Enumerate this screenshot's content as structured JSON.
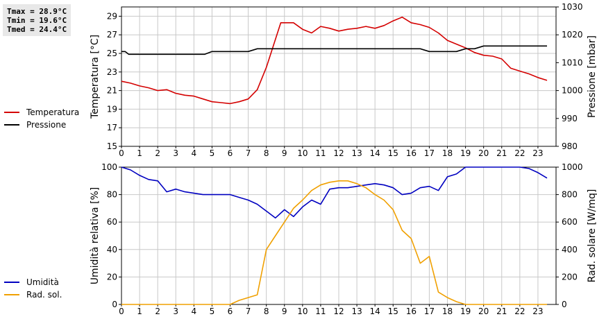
{
  "stats": {
    "tmax": "Tmax = 28.9°C",
    "tmin": "Tmin = 19.6°C",
    "tmed": "Tmed = 24.4°C"
  },
  "legend_top": [
    {
      "label": "Temperatura",
      "color": "#d40000"
    },
    {
      "label": "Pressione",
      "color": "#000000"
    }
  ],
  "legend_bottom": [
    {
      "label": "Umidità",
      "color": "#0000c0"
    },
    {
      "label": "Rad. sol.",
      "color": "#f0a000"
    }
  ],
  "chart_data": [
    {
      "type": "line",
      "ylabel": "Temperatura [°C]",
      "y2label": "Pressione [mbar]",
      "xlim": [
        0,
        24
      ],
      "ylim": [
        15,
        30
      ],
      "y2lim": [
        980,
        1030
      ],
      "x_ticks": [
        0,
        1,
        2,
        3,
        4,
        5,
        6,
        7,
        8,
        9,
        10,
        11,
        12,
        13,
        14,
        15,
        16,
        17,
        18,
        19,
        20,
        21,
        22,
        23
      ],
      "y_ticks": [
        15,
        17,
        19,
        21,
        23,
        25,
        27,
        29
      ],
      "y2_ticks": [
        980,
        990,
        1000,
        1010,
        1020,
        1030
      ],
      "grid": true,
      "series": [
        {
          "name": "Temperatura",
          "color": "#d40000",
          "axis": "left",
          "x": [
            0,
            0.5,
            1,
            1.5,
            2,
            2.5,
            3,
            3.5,
            4,
            4.5,
            5,
            5.5,
            6,
            6.5,
            7,
            7.5,
            8,
            8.5,
            8.8,
            9.5,
            10,
            10.5,
            11,
            11.5,
            12,
            12.5,
            13,
            13.5,
            14,
            14.5,
            15,
            15.5,
            16,
            16.5,
            17,
            17.5,
            18,
            18.5,
            19,
            19.5,
            20,
            20.5,
            21,
            21.5,
            22,
            22.5,
            23,
            23.5
          ],
          "values": [
            22,
            21.8,
            21.5,
            21.3,
            21.0,
            21.1,
            20.7,
            20.5,
            20.4,
            20.1,
            19.8,
            19.7,
            19.6,
            19.8,
            20.1,
            21.1,
            23.5,
            26.5,
            28.3,
            28.3,
            27.6,
            27.2,
            27.9,
            27.7,
            27.4,
            27.6,
            27.7,
            27.9,
            27.7,
            28.0,
            28.5,
            28.9,
            28.3,
            28.1,
            27.8,
            27.2,
            26.4,
            26.0,
            25.6,
            25.1,
            24.8,
            24.7,
            24.4,
            23.4,
            23.1,
            22.8,
            22.4,
            22.1
          ]
        },
        {
          "name": "Pressione",
          "color": "#000000",
          "axis": "right",
          "x": [
            0,
            0.2,
            0.4,
            4.6,
            5,
            7,
            7.5,
            16.5,
            17,
            18.5,
            19,
            19.5,
            20,
            23.5
          ],
          "values": [
            1014,
            1014,
            1013,
            1013,
            1014,
            1014,
            1015,
            1015,
            1014,
            1014,
            1015,
            1015,
            1016,
            1016
          ]
        }
      ]
    },
    {
      "type": "line",
      "ylabel": "Umidità relativa [%]",
      "y2label": "Rad. solare [W/mq]",
      "xlim": [
        0,
        24
      ],
      "ylim": [
        0,
        100
      ],
      "y2lim": [
        0,
        1000
      ],
      "x_ticks": [
        0,
        1,
        2,
        3,
        4,
        5,
        6,
        7,
        8,
        9,
        10,
        11,
        12,
        13,
        14,
        15,
        16,
        17,
        18,
        19,
        20,
        21,
        22,
        23
      ],
      "y_ticks": [
        0,
        20,
        40,
        60,
        80,
        100
      ],
      "y2_ticks": [
        0,
        200,
        400,
        600,
        800,
        1000
      ],
      "grid": true,
      "series": [
        {
          "name": "Umidità",
          "color": "#0000c0",
          "axis": "left",
          "x": [
            0,
            0.5,
            1,
            1.5,
            2,
            2.5,
            3,
            3.5,
            4,
            4.5,
            5,
            5.5,
            6,
            6.5,
            7,
            7.5,
            8,
            8.5,
            9,
            9.5,
            10,
            10.5,
            11,
            11.5,
            12,
            12.5,
            13,
            13.5,
            14,
            14.5,
            15,
            15.5,
            16,
            16.5,
            17,
            17.5,
            18,
            18.5,
            19,
            19.5,
            20,
            20.5,
            21,
            21.5,
            22,
            22.5,
            23,
            23.5
          ],
          "values": [
            100,
            98,
            94,
            91,
            90,
            82,
            84,
            82,
            81,
            80,
            80,
            80,
            80,
            78,
            76,
            73,
            68,
            63,
            69,
            64,
            71,
            76,
            73,
            84,
            85,
            85,
            86,
            87,
            88,
            87,
            85,
            80,
            81,
            85,
            86,
            83,
            93,
            95,
            100,
            100,
            100,
            100,
            100,
            100,
            100,
            99,
            96,
            92
          ]
        },
        {
          "name": "Rad. sol.",
          "color": "#f0a000",
          "axis": "right",
          "x": [
            0,
            6,
            6.5,
            7,
            7.5,
            8,
            8.5,
            9,
            9.5,
            10,
            10.5,
            11,
            11.5,
            12,
            12.5,
            13,
            13.5,
            14,
            14.5,
            15,
            15.5,
            16,
            16.5,
            17,
            17.5,
            18,
            18.5,
            19,
            23.5
          ],
          "values": [
            0,
            0,
            30,
            50,
            70,
            400,
            500,
            600,
            700,
            760,
            830,
            870,
            890,
            900,
            900,
            880,
            850,
            800,
            760,
            690,
            540,
            480,
            300,
            350,
            90,
            50,
            20,
            0,
            0
          ]
        }
      ]
    }
  ]
}
